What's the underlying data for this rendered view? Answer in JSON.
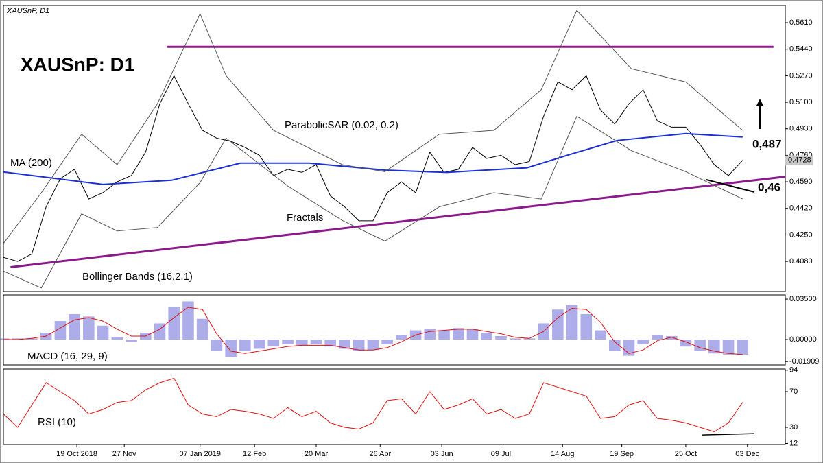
{
  "chart_data": [
    {
      "type": "line",
      "title": "XAUSnP: D1",
      "subtitle": "XAUSnP, D1",
      "x": [
        0,
        6,
        12,
        18,
        24,
        30,
        36,
        42,
        48,
        54,
        60,
        66,
        72,
        78,
        84,
        90,
        96,
        102,
        108,
        114,
        120,
        126,
        132,
        138,
        144,
        150,
        156,
        162,
        168,
        174,
        180,
        186,
        192,
        198,
        204,
        210,
        216,
        222,
        228,
        234,
        240,
        246,
        252,
        258,
        264,
        270,
        276,
        282,
        288,
        294,
        300,
        306,
        312
      ],
      "series": [
        {
          "color": "#000000",
          "values": [
            0.4106,
            0.408,
            0.4128,
            0.443,
            0.461,
            0.467,
            0.448,
            0.452,
            0.459,
            0.463,
            0.478,
            0.509,
            0.527,
            0.509,
            0.492,
            0.487,
            0.485,
            0.481,
            0.476,
            0.463,
            0.467,
            0.465,
            0.47,
            0.45,
            0.443,
            0.434,
            0.434,
            0.452,
            0.459,
            0.452,
            0.478,
            0.465,
            0.467,
            0.481,
            0.474,
            0.476,
            0.47,
            0.472,
            0.501,
            0.523,
            0.518,
            0.527,
            0.505,
            0.496,
            0.509,
            0.518,
            0.498,
            0.494,
            0.494,
            0.483,
            0.47,
            0.463,
            0.4728
          ]
        },
        {
          "name": "MA (200)",
          "color": "#1a2fd6",
          "x": [
            0,
            42,
            71,
            100,
            129,
            161,
            187,
            221,
            239,
            259,
            288,
            312
          ],
          "values": [
            0.4653,
            0.4573,
            0.46,
            0.471,
            0.471,
            0.4665,
            0.465,
            0.468,
            0.4765,
            0.4855,
            0.4899,
            0.4877
          ]
        },
        {
          "name": "Bollinger Bands (16,2.1)",
          "color": "#555555",
          "x": [
            0,
            16,
            33,
            48,
            65,
            83,
            94,
            114,
            143,
            161,
            184,
            207,
            227,
            242,
            265,
            288,
            312
          ],
          "values": [
            0.4195,
            0.452,
            0.4895,
            0.47,
            0.509,
            0.5667,
            0.527,
            0.492,
            0.47,
            0.4655,
            0.4895,
            0.492,
            0.518,
            0.5689,
            0.5315,
            0.523,
            0.492
          ]
        },
        {
          "color": "#555555",
          "x": [
            0,
            16,
            33,
            48,
            65,
            83,
            94,
            120,
            143,
            161,
            184,
            207,
            227,
            242,
            265,
            288,
            312
          ],
          "values": [
            0.4018,
            0.391,
            0.4385,
            0.4275,
            0.4297,
            0.4585,
            0.487,
            0.4563,
            0.4343,
            0.421,
            0.443,
            0.452,
            0.448,
            0.501,
            0.479,
            0.4655,
            0.448
          ]
        }
      ],
      "trendlines": [
        {
          "color": "#8b1a8b",
          "x": [
            69,
            325
          ],
          "y": [
            0.5455,
            0.5455
          ]
        },
        {
          "color": "#8b1a8b",
          "x": [
            3,
            330
          ],
          "y": [
            0.4043,
            0.4623
          ]
        }
      ],
      "annotations": [
        "ParabolicSAR (0.02, 0.2)",
        "Fractals",
        "0,487",
        "0,46"
      ],
      "last_price_label": "0.4728",
      "xlim": [
        0,
        330
      ],
      "xticks": [
        {
          "value": 31,
          "label": "19 Oct 2018"
        },
        {
          "value": 51,
          "label": "27 Nov"
        },
        {
          "value": 83,
          "label": "07 Jan 2019"
        },
        {
          "value": 106,
          "label": "12 Feb"
        },
        {
          "value": 132,
          "label": "20 Mar"
        },
        {
          "value": 159,
          "label": "26 Apr"
        },
        {
          "value": 185,
          "label": "03 Jun"
        },
        {
          "value": 210,
          "label": "09 Jul"
        },
        {
          "value": 236,
          "label": "14 Aug"
        },
        {
          "value": 261,
          "label": "19 Sep"
        },
        {
          "value": 288,
          "label": "25 Oct"
        },
        {
          "value": 314,
          "label": "03 Dec"
        }
      ],
      "ylim": [
        0.3887,
        0.572
      ],
      "yticks": [
        {
          "value": 0.408,
          "label": "0.4080"
        },
        {
          "value": 0.425,
          "label": "0.4250"
        },
        {
          "value": 0.442,
          "label": "0.4420"
        },
        {
          "value": 0.459,
          "label": "0.4590"
        },
        {
          "value": 0.476,
          "label": "0.4760"
        },
        {
          "value": 0.493,
          "label": "0.4930"
        },
        {
          "value": 0.51,
          "label": "0.5100"
        },
        {
          "value": 0.527,
          "label": "0.5270"
        },
        {
          "value": 0.544,
          "label": "0.5440"
        },
        {
          "value": 0.561,
          "label": "0.5610"
        }
      ]
    },
    {
      "type": "bar",
      "title": "MACD (16, 29, 9)",
      "series": [
        {
          "color": "#6a6ad8",
          "values": [
            0.001,
            0.001,
            0.001,
            0.006,
            0.016,
            0.022,
            0.02,
            0.012,
            0.002,
            -0.002,
            0.006,
            0.014,
            0.028,
            0.033,
            0.018,
            -0.01,
            -0.015,
            -0.01,
            -0.008,
            -0.006,
            -0.004,
            -0.005,
            -0.004,
            -0.006,
            -0.008,
            -0.01,
            -0.009,
            -0.004,
            0.004,
            0.008,
            0.009,
            0.008,
            0.01,
            0.009,
            0.006,
            0.003,
            0.001,
            0.001,
            0.014,
            0.026,
            0.03,
            0.022,
            0.008,
            -0.01,
            -0.014,
            -0.004,
            0.004,
            0.003,
            -0.006,
            -0.01,
            -0.012,
            -0.013,
            -0.013
          ]
        },
        {
          "color": "#e01010",
          "values": [
            0.0,
            0.0,
            0.001,
            0.003,
            0.01,
            0.017,
            0.019,
            0.016,
            0.009,
            0.003,
            0.003,
            0.009,
            0.019,
            0.028,
            0.026,
            0.005,
            -0.01,
            -0.012,
            -0.01,
            -0.008,
            -0.006,
            -0.005,
            -0.005,
            -0.005,
            -0.007,
            -0.009,
            -0.009,
            -0.007,
            -0.002,
            0.004,
            0.007,
            0.008,
            0.009,
            0.009,
            0.007,
            0.005,
            0.002,
            0.001,
            0.007,
            0.019,
            0.027,
            0.026,
            0.015,
            -0.002,
            -0.012,
            -0.009,
            -0.001,
            0.002,
            -0.002,
            -0.007,
            -0.01,
            -0.012,
            -0.013
          ]
        }
      ],
      "ylim": [
        -0.02195,
        0.0386
      ],
      "yticks": [
        {
          "value": 0.035,
          "label": "0.03500"
        },
        {
          "value": 0,
          "label": "0.00000"
        },
        {
          "value": -0.01909,
          "label": "-0.01909"
        }
      ]
    },
    {
      "type": "line",
      "title": "RSI (10)",
      "series": [
        {
          "color": "#e01010",
          "values": [
            45,
            30,
            55,
            80,
            70,
            60,
            45,
            50,
            58,
            60,
            72,
            80,
            85,
            55,
            45,
            42,
            50,
            48,
            45,
            40,
            52,
            42,
            48,
            35,
            30,
            28,
            35,
            60,
            62,
            45,
            70,
            50,
            55,
            62,
            45,
            50,
            40,
            45,
            80,
            75,
            70,
            65,
            40,
            42,
            55,
            60,
            40,
            38,
            35,
            30,
            25,
            35,
            58
          ]
        }
      ],
      "trendlines": [
        {
          "color": "#000000",
          "x": [
            295,
            317
          ],
          "y": [
            21.5,
            23
          ]
        }
      ],
      "ylim": [
        10.8,
        95.4
      ],
      "yticks": [
        94,
        70,
        30,
        12
      ]
    }
  ]
}
